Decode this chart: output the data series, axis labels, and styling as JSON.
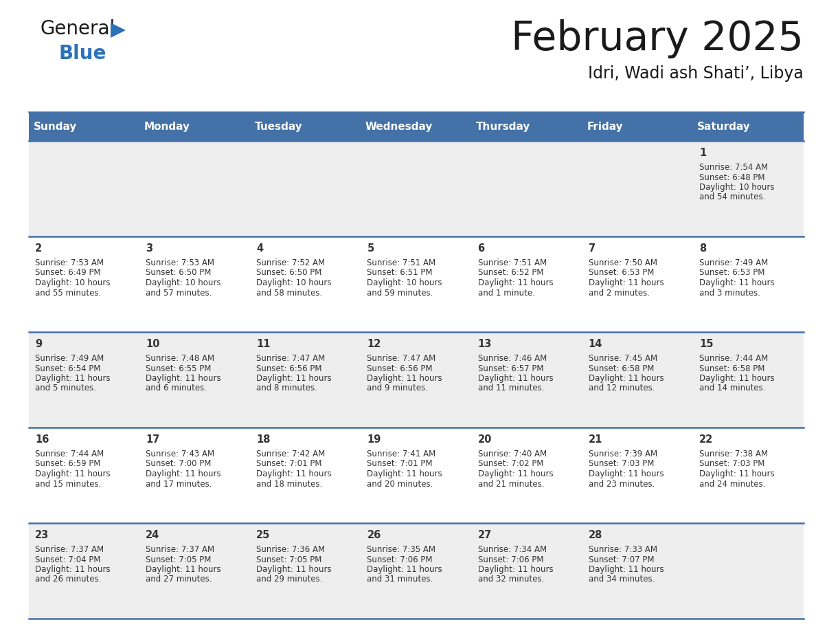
{
  "title": "February 2025",
  "subtitle": "Idri, Wadi ash Shati’, Libya",
  "days_of_week": [
    "Sunday",
    "Monday",
    "Tuesday",
    "Wednesday",
    "Thursday",
    "Friday",
    "Saturday"
  ],
  "header_bg": "#4472a8",
  "header_text": "#ffffff",
  "cell_bg_even": "#eeeeee",
  "cell_bg_odd": "#ffffff",
  "row_line_color": "#4472a8",
  "text_color": "#333333",
  "calendar_data": [
    [
      null,
      null,
      null,
      null,
      null,
      null,
      {
        "day": "1",
        "sunrise": "7:54 AM",
        "sunset": "6:48 PM",
        "daylight1": "10 hours",
        "daylight2": "and 54 minutes."
      }
    ],
    [
      {
        "day": "2",
        "sunrise": "7:53 AM",
        "sunset": "6:49 PM",
        "daylight1": "10 hours",
        "daylight2": "and 55 minutes."
      },
      {
        "day": "3",
        "sunrise": "7:53 AM",
        "sunset": "6:50 PM",
        "daylight1": "10 hours",
        "daylight2": "and 57 minutes."
      },
      {
        "day": "4",
        "sunrise": "7:52 AM",
        "sunset": "6:50 PM",
        "daylight1": "10 hours",
        "daylight2": "and 58 minutes."
      },
      {
        "day": "5",
        "sunrise": "7:51 AM",
        "sunset": "6:51 PM",
        "daylight1": "10 hours",
        "daylight2": "and 59 minutes."
      },
      {
        "day": "6",
        "sunrise": "7:51 AM",
        "sunset": "6:52 PM",
        "daylight1": "11 hours",
        "daylight2": "and 1 minute."
      },
      {
        "day": "7",
        "sunrise": "7:50 AM",
        "sunset": "6:53 PM",
        "daylight1": "11 hours",
        "daylight2": "and 2 minutes."
      },
      {
        "day": "8",
        "sunrise": "7:49 AM",
        "sunset": "6:53 PM",
        "daylight1": "11 hours",
        "daylight2": "and 3 minutes."
      }
    ],
    [
      {
        "day": "9",
        "sunrise": "7:49 AM",
        "sunset": "6:54 PM",
        "daylight1": "11 hours",
        "daylight2": "and 5 minutes."
      },
      {
        "day": "10",
        "sunrise": "7:48 AM",
        "sunset": "6:55 PM",
        "daylight1": "11 hours",
        "daylight2": "and 6 minutes."
      },
      {
        "day": "11",
        "sunrise": "7:47 AM",
        "sunset": "6:56 PM",
        "daylight1": "11 hours",
        "daylight2": "and 8 minutes."
      },
      {
        "day": "12",
        "sunrise": "7:47 AM",
        "sunset": "6:56 PM",
        "daylight1": "11 hours",
        "daylight2": "and 9 minutes."
      },
      {
        "day": "13",
        "sunrise": "7:46 AM",
        "sunset": "6:57 PM",
        "daylight1": "11 hours",
        "daylight2": "and 11 minutes."
      },
      {
        "day": "14",
        "sunrise": "7:45 AM",
        "sunset": "6:58 PM",
        "daylight1": "11 hours",
        "daylight2": "and 12 minutes."
      },
      {
        "day": "15",
        "sunrise": "7:44 AM",
        "sunset": "6:58 PM",
        "daylight1": "11 hours",
        "daylight2": "and 14 minutes."
      }
    ],
    [
      {
        "day": "16",
        "sunrise": "7:44 AM",
        "sunset": "6:59 PM",
        "daylight1": "11 hours",
        "daylight2": "and 15 minutes."
      },
      {
        "day": "17",
        "sunrise": "7:43 AM",
        "sunset": "7:00 PM",
        "daylight1": "11 hours",
        "daylight2": "and 17 minutes."
      },
      {
        "day": "18",
        "sunrise": "7:42 AM",
        "sunset": "7:01 PM",
        "daylight1": "11 hours",
        "daylight2": "and 18 minutes."
      },
      {
        "day": "19",
        "sunrise": "7:41 AM",
        "sunset": "7:01 PM",
        "daylight1": "11 hours",
        "daylight2": "and 20 minutes."
      },
      {
        "day": "20",
        "sunrise": "7:40 AM",
        "sunset": "7:02 PM",
        "daylight1": "11 hours",
        "daylight2": "and 21 minutes."
      },
      {
        "day": "21",
        "sunrise": "7:39 AM",
        "sunset": "7:03 PM",
        "daylight1": "11 hours",
        "daylight2": "and 23 minutes."
      },
      {
        "day": "22",
        "sunrise": "7:38 AM",
        "sunset": "7:03 PM",
        "daylight1": "11 hours",
        "daylight2": "and 24 minutes."
      }
    ],
    [
      {
        "day": "23",
        "sunrise": "7:37 AM",
        "sunset": "7:04 PM",
        "daylight1": "11 hours",
        "daylight2": "and 26 minutes."
      },
      {
        "day": "24",
        "sunrise": "7:37 AM",
        "sunset": "7:05 PM",
        "daylight1": "11 hours",
        "daylight2": "and 27 minutes."
      },
      {
        "day": "25",
        "sunrise": "7:36 AM",
        "sunset": "7:05 PM",
        "daylight1": "11 hours",
        "daylight2": "and 29 minutes."
      },
      {
        "day": "26",
        "sunrise": "7:35 AM",
        "sunset": "7:06 PM",
        "daylight1": "11 hours",
        "daylight2": "and 31 minutes."
      },
      {
        "day": "27",
        "sunrise": "7:34 AM",
        "sunset": "7:06 PM",
        "daylight1": "11 hours",
        "daylight2": "and 32 minutes."
      },
      {
        "day": "28",
        "sunrise": "7:33 AM",
        "sunset": "7:07 PM",
        "daylight1": "11 hours",
        "daylight2": "and 34 minutes."
      },
      null
    ]
  ],
  "logo_color_general": "#1a1a1a",
  "logo_color_blue": "#2d72b8",
  "logo_triangle_color": "#2d72b8"
}
